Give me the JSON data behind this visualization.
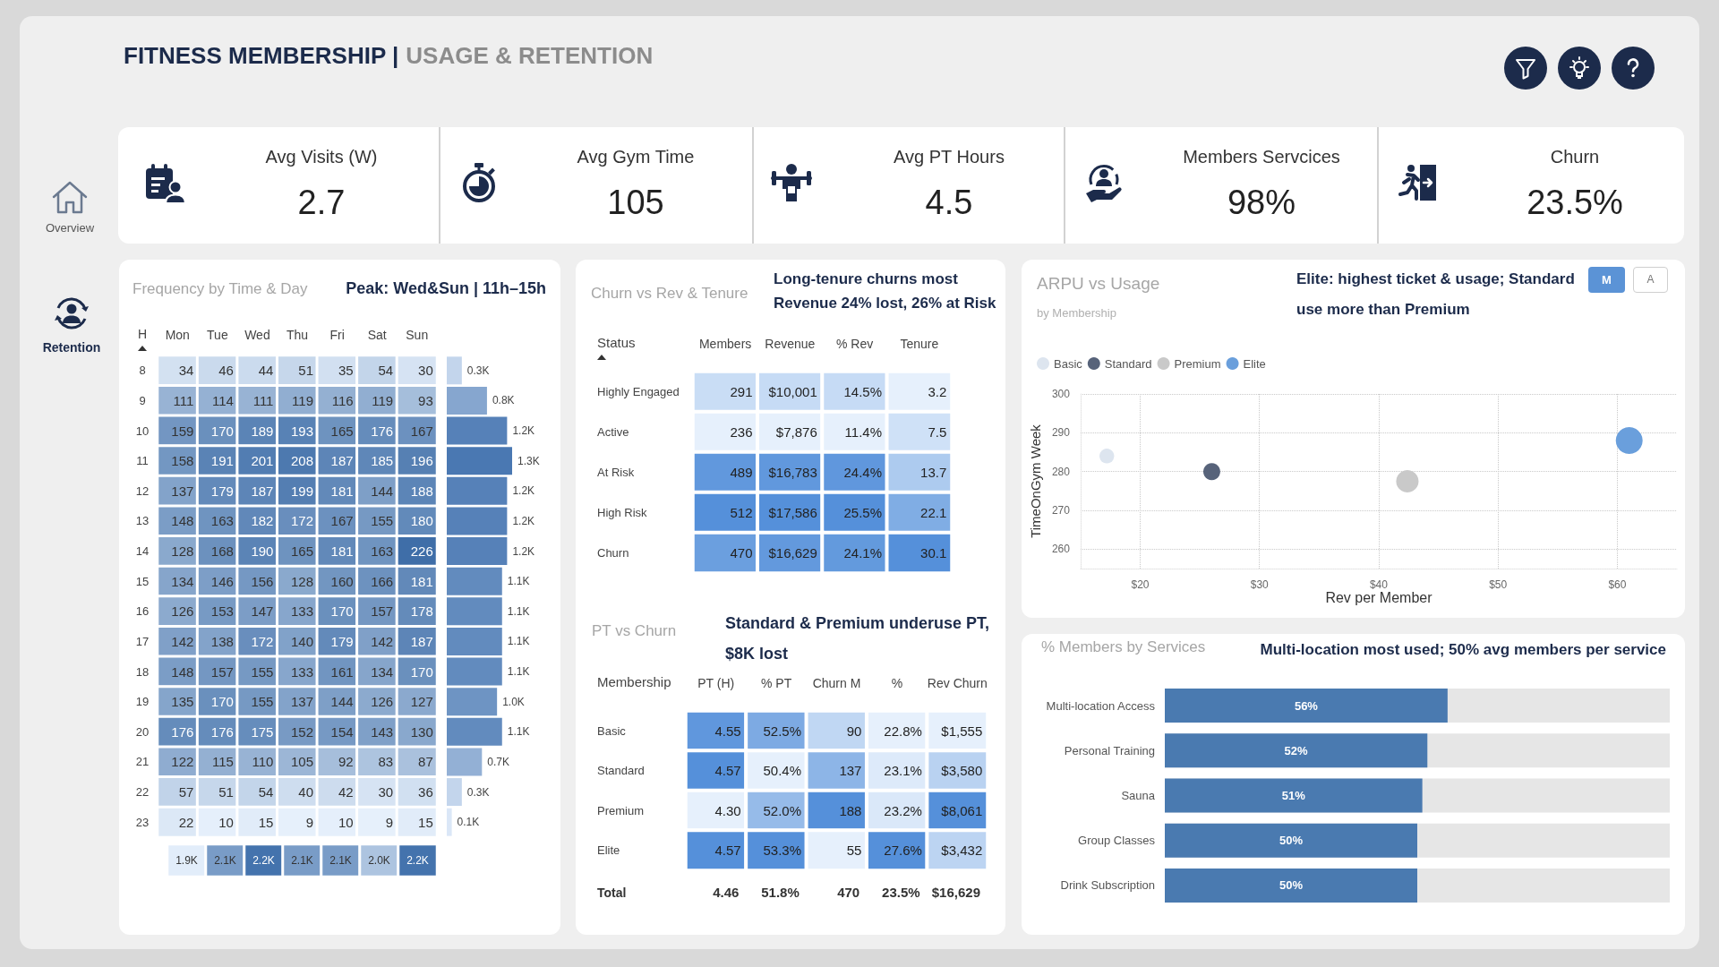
{
  "chart_data": [
    {
      "type": "other",
      "title": "FITNESS MEMBERSHIP |",
      "subtitle": "USAGE & RETENTION",
      "annotations": [
        "Overview",
        "Retention"
      ]
    },
    {
      "type": "other",
      "title": "Avg Visits (W)",
      "annotations": [
        "2.7"
      ]
    },
    {
      "type": "other",
      "title": "Avg Gym Time",
      "annotations": [
        "105"
      ]
    },
    {
      "type": "other",
      "title": "Avg PT Hours",
      "annotations": [
        "4.5"
      ]
    },
    {
      "type": "other",
      "title": "Members Servcices",
      "annotations": [
        "98%"
      ]
    },
    {
      "type": "other",
      "title": "Churn",
      "annotations": [
        "23.5%"
      ]
    },
    {
      "type": "heatmap",
      "title": "Frequency by Time & Day",
      "subtitle": "Peak: Wed&Sun | 11h–15h",
      "ylabel": "H",
      "categories": [
        "Mon",
        "Tue",
        "Wed",
        "Thu",
        "Fri",
        "Sat",
        "Sun"
      ],
      "y_categories": [
        "8",
        "9",
        "10",
        "11",
        "12",
        "13",
        "14",
        "15",
        "16",
        "17",
        "18",
        "19",
        "20",
        "21",
        "22",
        "23"
      ],
      "data_labels": true,
      "cells": [
        [
          34,
          46,
          44,
          51,
          35,
          54,
          30
        ],
        [
          111,
          114,
          111,
          119,
          116,
          119,
          93
        ],
        [
          159,
          170,
          189,
          193,
          165,
          176,
          167
        ],
        [
          158,
          191,
          201,
          208,
          187,
          185,
          196
        ],
        [
          137,
          179,
          187,
          199,
          181,
          144,
          188
        ],
        [
          148,
          163,
          182,
          172,
          167,
          155,
          180
        ],
        [
          128,
          168,
          190,
          165,
          181,
          163,
          226
        ],
        [
          134,
          146,
          156,
          128,
          160,
          166,
          181
        ],
        [
          126,
          153,
          147,
          133,
          170,
          157,
          178
        ],
        [
          142,
          138,
          172,
          140,
          179,
          142,
          187
        ],
        [
          148,
          157,
          155,
          133,
          161,
          134,
          170
        ],
        [
          135,
          170,
          155,
          137,
          144,
          126,
          127
        ],
        [
          176,
          176,
          175,
          152,
          154,
          143,
          130
        ],
        [
          122,
          115,
          110,
          105,
          92,
          83,
          87
        ],
        [
          57,
          51,
          54,
          40,
          42,
          30,
          36
        ],
        [
          22,
          10,
          15,
          9,
          10,
          9,
          15
        ]
      ]
    },
    {
      "type": "bar",
      "orientation": "horizontal",
      "categories": [
        null,
        null,
        null,
        null,
        null,
        null,
        null,
        null,
        null,
        null,
        null,
        null,
        null,
        null,
        null,
        null
      ],
      "values": [
        0.3,
        0.8,
        1.2,
        1.3,
        1.2,
        1.2,
        1.2,
        1.1,
        1.1,
        1.1,
        1.1,
        1.0,
        1.1,
        0.7,
        0.3,
        0.1
      ],
      "value_labels": [
        "0.3K",
        "0.8K",
        "1.2K",
        "1.3K",
        "1.2K",
        "1.2K",
        "1.2K",
        "1.1K",
        "1.1K",
        "1.1K",
        "1.1K",
        "1.0K",
        "1.1K",
        "0.7K",
        "0.3K",
        "0.1K"
      ]
    },
    {
      "type": "heatmap",
      "categories": [
        null,
        null,
        null,
        null,
        null,
        null,
        null
      ],
      "y_categories": [
        null
      ],
      "cells": [
        [
          1.9,
          2.1,
          2.2,
          2.1,
          2.1,
          2.0,
          2.2
        ]
      ],
      "cell_labels": [
        [
          "1.9K",
          "2.1K",
          "2.2K",
          "2.1K",
          "2.1K",
          "2.0K",
          "2.2K"
        ]
      ]
    },
    {
      "type": "heatmap",
      "title": "Churn vs Rev & Tenure",
      "subtitle": "Long-tenure churns most\nRevenue 24% lost, 26% at Risk",
      "ylabel": "Status",
      "categories": [
        "Members",
        "Revenue",
        "% Rev",
        "Tenure"
      ],
      "y_categories": [
        "Highly Engaged",
        "Active",
        "At Risk",
        "High Risk",
        "Churn"
      ],
      "cells": [
        [
          291,
          10001,
          14.5,
          3.2
        ],
        [
          236,
          7876,
          11.4,
          7.5
        ],
        [
          489,
          16783,
          24.4,
          13.7
        ],
        [
          512,
          17586,
          25.5,
          22.1
        ],
        [
          470,
          16629,
          24.1,
          30.1
        ]
      ],
      "cell_labels": [
        [
          "291",
          "$10,001",
          "14.5%",
          "3.2"
        ],
        [
          "236",
          "$7,876",
          "11.4%",
          "7.5"
        ],
        [
          "489",
          "$16,783",
          "24.4%",
          "13.7"
        ],
        [
          "512",
          "$17,586",
          "25.5%",
          "22.1"
        ],
        [
          "470",
          "$16,629",
          "24.1%",
          "30.1"
        ]
      ]
    },
    {
      "type": "heatmap",
      "title": "PT vs Churn",
      "subtitle": "Standard & Premium underuse PT,\n$8K lost",
      "ylabel": "Membership",
      "categories": [
        "PT (H)",
        "% PT",
        "Churn M",
        "%",
        "Rev Churn"
      ],
      "y_categories": [
        "Basic",
        "Standard",
        "Premium",
        "Elite"
      ],
      "cells": [
        [
          4.55,
          52.5,
          90,
          22.8,
          1555
        ],
        [
          4.57,
          50.4,
          137,
          23.1,
          3580
        ],
        [
          4.3,
          52.0,
          188,
          23.2,
          8061
        ],
        [
          4.57,
          53.3,
          55,
          27.6,
          3432
        ]
      ],
      "cell_labels": [
        [
          "4.55",
          "52.5%",
          "90",
          "22.8%",
          "$1,555"
        ],
        [
          "4.57",
          "50.4%",
          "137",
          "23.1%",
          "$3,580"
        ],
        [
          "4.30",
          "52.0%",
          "188",
          "23.2%",
          "$8,061"
        ],
        [
          "4.57",
          "53.3%",
          "55",
          "27.6%",
          "$3,432"
        ]
      ],
      "totals": [
        "4.46",
        "51.8%",
        "470",
        "23.5%",
        "$16,629"
      ],
      "annotations": [
        "Total"
      ]
    },
    {
      "type": "bubble",
      "title": "ARPU vs Usage",
      "subtitle": "by Membership",
      "annotations": [
        "Elite: highest ticket & usage; Standard\nuse more than Premium",
        "M",
        "A"
      ],
      "xlabel": "Rev per Member",
      "ylabel": "TimeOnGym Week",
      "xlim": [
        15,
        65
      ],
      "xticks": [
        {
          "value": 20,
          "label": "$20"
        },
        {
          "value": 30,
          "label": "$30"
        },
        {
          "value": 40,
          "label": "$40"
        },
        {
          "value": 50,
          "label": "$50"
        },
        {
          "value": 60,
          "label": "$60"
        }
      ],
      "ylim": [
        255,
        300
      ],
      "yticks": [
        260,
        270,
        280,
        290,
        300
      ],
      "grid": true,
      "legend": "top left",
      "marker": "circle",
      "series": [
        {
          "name": "Basic",
          "color": "#dde5ef",
          "x": [
            17.2
          ],
          "values": [
            284
          ],
          "sizes": [
            0.3
          ]
        },
        {
          "name": "Standard",
          "color": "#57637a",
          "x": [
            26
          ],
          "values": [
            280
          ],
          "sizes": [
            0.4
          ]
        },
        {
          "name": "Premium",
          "color": "#c9c9c9",
          "x": [
            42.4
          ],
          "values": [
            277.5
          ],
          "sizes": [
            0.7
          ]
        },
        {
          "name": "Elite",
          "color": "#6a9fdc",
          "x": [
            61
          ],
          "values": [
            288
          ],
          "sizes": [
            1
          ]
        }
      ]
    },
    {
      "type": "bar",
      "orientation": "horizontal",
      "title": "% Members by Services",
      "subtitle": "Multi-location most used; 50% avg members per service",
      "categories": [
        "Multi-location Access",
        "Personal Training",
        "Sauna",
        "Group Classes",
        "Drink Subscription"
      ],
      "values": [
        56,
        52,
        51,
        50,
        50
      ],
      "value_labels": [
        "56%",
        "52%",
        "51%",
        "50%",
        "50%"
      ],
      "color": "#4a7ab0",
      "xlim": [
        0,
        100
      ],
      "tick_labels": "y"
    }
  ]
}
